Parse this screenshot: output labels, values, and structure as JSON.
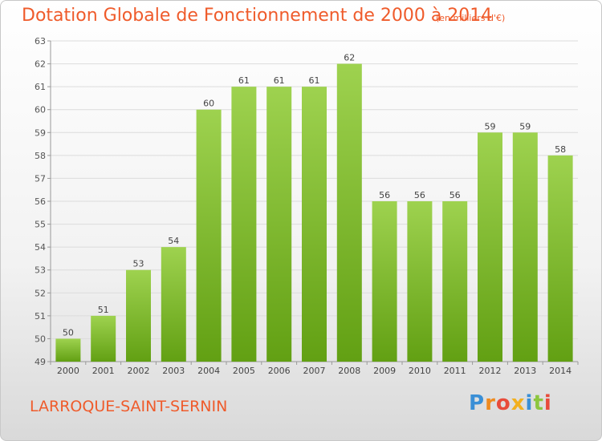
{
  "header": {
    "title": "Dotation Globale de Fonctionnement de 2000 à 2014",
    "subtitle": "(en milliers d'€)"
  },
  "footer": {
    "commune": "LARROQUE-SAINT-SERNIN",
    "logo_text": "Proxiti"
  },
  "colors": {
    "title": "#ef5b2b",
    "bar_light": "#9ed24f",
    "bar_dark": "#62a013",
    "axis": "#999999",
    "grid": "#dcdcdc"
  },
  "chart_data": {
    "type": "bar",
    "title": "Dotation Globale de Fonctionnement de 2000 à 2014",
    "subtitle": "(en milliers d'€)",
    "categories": [
      "2000",
      "2001",
      "2002",
      "2003",
      "2004",
      "2005",
      "2006",
      "2007",
      "2008",
      "2009",
      "2010",
      "2011",
      "2012",
      "2013",
      "2014"
    ],
    "values": [
      50,
      51,
      53,
      54,
      60,
      61,
      61,
      61,
      62,
      56,
      56,
      56,
      59,
      59,
      58
    ],
    "xlabel": "",
    "ylabel": "",
    "ylim": [
      49,
      63
    ],
    "yticks": [
      49,
      50,
      51,
      52,
      53,
      54,
      55,
      56,
      57,
      58,
      59,
      60,
      61,
      62,
      63
    ],
    "grid": true,
    "data_labels": true
  }
}
